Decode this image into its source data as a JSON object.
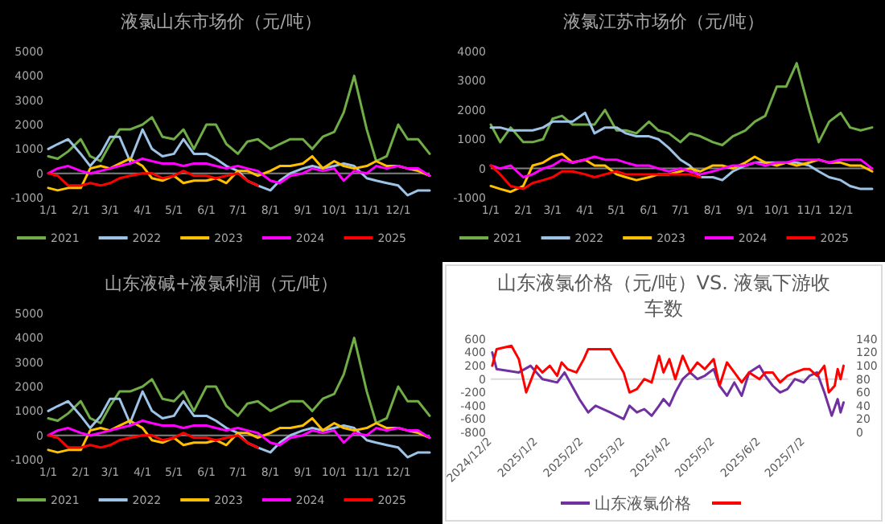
{
  "chart_data": [
    {
      "type": "line",
      "title": "液氯山东市场价（元/吨）",
      "legend": "bottom",
      "x": [
        "--01-01",
        "--01-10",
        "--01-20",
        "--02-01",
        "--02-10",
        "--02-20",
        "--03-01",
        "--03-10",
        "--03-20",
        "--04-01",
        "--04-10",
        "--04-20",
        "--05-01",
        "--05-10",
        "--05-20",
        "--06-01",
        "--06-10",
        "--06-20",
        "--07-01",
        "--07-10",
        "--07-20",
        "--08-01",
        "--08-10",
        "--08-20",
        "--09-01",
        "--09-10",
        "--09-20",
        "--10-01",
        "--10-10",
        "--10-20",
        "--11-01",
        "--11-10",
        "--11-20",
        "--12-01",
        "--12-10",
        "--12-20",
        "--12-31"
      ],
      "xlim": [
        "--01-01",
        "--12-31"
      ],
      "xticks": [
        {
          "value": "--01-01",
          "label": "1/1"
        },
        {
          "value": "--02-01",
          "label": "2/1"
        },
        {
          "value": "--03-01",
          "label": "3/1"
        },
        {
          "value": "--04-01",
          "label": "4/1"
        },
        {
          "value": "--05-01",
          "label": "5/1"
        },
        {
          "value": "--06-01",
          "label": "6/1"
        },
        {
          "value": "--07-01",
          "label": "7/1"
        },
        {
          "value": "--08-01",
          "label": "8/1"
        },
        {
          "value": "--09-01",
          "label": "9/1"
        },
        {
          "value": "--10-01",
          "label": "10/1"
        },
        {
          "value": "--11-01",
          "label": "11/1"
        },
        {
          "value": "--12-01",
          "label": "12/1"
        }
      ],
      "ylim": [
        -1000,
        5000
      ],
      "yticks": [
        -1000,
        0,
        1000,
        2000,
        3000,
        4000,
        5000
      ],
      "series": [
        {
          "name": "2021",
          "color": "#70ad47",
          "values": [
            700,
            600,
            900,
            1400,
            700,
            500,
            1200,
            1800,
            1800,
            2000,
            2300,
            1500,
            1400,
            1800,
            1000,
            2000,
            2000,
            1200,
            800,
            1300,
            1400,
            1000,
            1200,
            1400,
            1400,
            1000,
            1500,
            1700,
            2500,
            4000,
            1800,
            500,
            700,
            2000,
            1400,
            1400,
            800
          ]
        },
        {
          "name": "2022",
          "color": "#9dc3e6",
          "values": [
            1000,
            1200,
            1400,
            800,
            300,
            800,
            1500,
            1500,
            500,
            1800,
            1000,
            700,
            800,
            1400,
            800,
            800,
            600,
            300,
            100,
            -300,
            -500,
            -700,
            -300,
            0,
            200,
            300,
            200,
            300,
            400,
            300,
            -200,
            -300,
            -400,
            -500,
            -900,
            -700,
            -700
          ]
        },
        {
          "name": "2023",
          "color": "#ffc000",
          "values": [
            -600,
            -700,
            -600,
            -600,
            200,
            300,
            200,
            400,
            600,
            300,
            -200,
            -300,
            -100,
            -400,
            -300,
            -300,
            -200,
            -400,
            100,
            100,
            -100,
            100,
            300,
            300,
            400,
            700,
            200,
            500,
            300,
            200,
            300,
            500,
            300,
            300,
            200,
            100,
            -100
          ]
        },
        {
          "name": "2024",
          "color": "#ff00ff",
          "values": [
            0,
            200,
            300,
            100,
            0,
            100,
            200,
            300,
            400,
            600,
            500,
            400,
            400,
            300,
            400,
            400,
            300,
            200,
            300,
            200,
            100,
            -300,
            -400,
            -100,
            0,
            200,
            100,
            200,
            -300,
            100,
            0,
            300,
            200,
            300,
            200,
            200,
            -100
          ]
        },
        {
          "name": "2025",
          "color": "#ff0000",
          "values": [
            0,
            -100,
            -500,
            -500,
            -400,
            -500,
            -400,
            -200,
            -100,
            0,
            0,
            -200,
            -100,
            100,
            -100,
            -100,
            -200,
            -100,
            0,
            -300,
            -500,
            null,
            null,
            null,
            null,
            null,
            null,
            null,
            null,
            null,
            null,
            null,
            null,
            null,
            null,
            null,
            null
          ]
        }
      ]
    },
    {
      "type": "line",
      "title": "液氯江苏市场价（元/吨）",
      "legend": "bottom",
      "x": [
        "--01-01",
        "--01-10",
        "--01-20",
        "--02-01",
        "--02-10",
        "--02-20",
        "--03-01",
        "--03-10",
        "--03-20",
        "--04-01",
        "--04-10",
        "--04-20",
        "--05-01",
        "--05-10",
        "--05-20",
        "--06-01",
        "--06-10",
        "--06-20",
        "--07-01",
        "--07-10",
        "--07-20",
        "--08-01",
        "--08-10",
        "--08-20",
        "--09-01",
        "--09-10",
        "--09-20",
        "--10-01",
        "--10-10",
        "--10-20",
        "--11-01",
        "--11-10",
        "--11-20",
        "--12-01",
        "--12-10",
        "--12-20",
        "--12-31"
      ],
      "xlim": [
        "--01-01",
        "--12-31"
      ],
      "xticks": [
        {
          "value": "--01-01",
          "label": "1/1"
        },
        {
          "value": "--02-01",
          "label": "2/1"
        },
        {
          "value": "--03-01",
          "label": "3/1"
        },
        {
          "value": "--04-01",
          "label": "4/1"
        },
        {
          "value": "--05-01",
          "label": "5/1"
        },
        {
          "value": "--06-01",
          "label": "6/1"
        },
        {
          "value": "--07-01",
          "label": "7/1"
        },
        {
          "value": "--08-01",
          "label": "8/1"
        },
        {
          "value": "--09-01",
          "label": "9/1"
        },
        {
          "value": "--10-01",
          "label": "10/1"
        },
        {
          "value": "--11-01",
          "label": "11/1"
        },
        {
          "value": "--12-01",
          "label": "12/1"
        }
      ],
      "ylim": [
        -1000,
        4000
      ],
      "yticks": [
        -1000,
        0,
        1000,
        2000,
        3000,
        4000
      ],
      "series": [
        {
          "name": "2021",
          "color": "#70ad47",
          "values": [
            1500,
            900,
            1400,
            900,
            900,
            1000,
            1700,
            1800,
            1500,
            1500,
            1500,
            2000,
            1300,
            1300,
            1200,
            1600,
            1300,
            1200,
            900,
            1200,
            1100,
            900,
            800,
            1100,
            1300,
            1600,
            1800,
            2800,
            2800,
            3600,
            2000,
            900,
            1600,
            1900,
            1400,
            1300,
            1400
          ]
        },
        {
          "name": "2022",
          "color": "#9dc3e6",
          "values": [
            1400,
            1400,
            1300,
            1300,
            1300,
            1400,
            1600,
            1600,
            1600,
            1900,
            1200,
            1400,
            1400,
            1200,
            1100,
            1100,
            1000,
            700,
            300,
            100,
            -300,
            -300,
            -400,
            -100,
            100,
            200,
            200,
            200,
            200,
            200,
            100,
            -100,
            -300,
            -400,
            -600,
            -700,
            -700
          ]
        },
        {
          "name": "2023",
          "color": "#ffc000",
          "values": [
            -600,
            -700,
            -800,
            -600,
            100,
            200,
            400,
            500,
            200,
            300,
            100,
            100,
            -200,
            -300,
            -400,
            -300,
            -200,
            -200,
            -100,
            0,
            -100,
            100,
            100,
            0,
            200,
            400,
            200,
            100,
            200,
            100,
            200,
            300,
            200,
            200,
            100,
            100,
            -100
          ]
        },
        {
          "name": "2024",
          "color": "#ff00ff",
          "values": [
            100,
            0,
            100,
            -300,
            -200,
            0,
            100,
            300,
            200,
            300,
            400,
            300,
            300,
            200,
            100,
            100,
            0,
            -100,
            0,
            -100,
            -200,
            -100,
            0,
            100,
            100,
            200,
            100,
            200,
            200,
            300,
            300,
            300,
            200,
            300,
            300,
            300,
            0
          ]
        },
        {
          "name": "2025",
          "color": "#ff0000",
          "values": [
            100,
            -200,
            -600,
            -700,
            -500,
            -400,
            -300,
            -100,
            -100,
            -200,
            -300,
            -200,
            -100,
            -200,
            -200,
            -200,
            -200,
            -200,
            -200,
            -200,
            -300,
            null,
            null,
            null,
            null,
            null,
            null,
            null,
            null,
            null,
            null,
            null,
            null,
            null,
            null,
            null,
            null
          ]
        }
      ]
    },
    {
      "type": "line",
      "title": "山东液碱+液氯利润（元/吨）",
      "legend": "bottom",
      "x": [
        "--01-01",
        "--01-10",
        "--01-20",
        "--02-01",
        "--02-10",
        "--02-20",
        "--03-01",
        "--03-10",
        "--03-20",
        "--04-01",
        "--04-10",
        "--04-20",
        "--05-01",
        "--05-10",
        "--05-20",
        "--06-01",
        "--06-10",
        "--06-20",
        "--07-01",
        "--07-10",
        "--07-20",
        "--08-01",
        "--08-10",
        "--08-20",
        "--09-01",
        "--09-10",
        "--09-20",
        "--10-01",
        "--10-10",
        "--10-20",
        "--11-01",
        "--11-10",
        "--11-20",
        "--12-01",
        "--12-10",
        "--12-20",
        "--12-31"
      ],
      "xlim": [
        "--01-01",
        "--12-31"
      ],
      "xticks": [
        {
          "value": "--01-01",
          "label": "1/1"
        },
        {
          "value": "--02-01",
          "label": "2/1"
        },
        {
          "value": "--03-01",
          "label": "3/1"
        },
        {
          "value": "--04-01",
          "label": "4/1"
        },
        {
          "value": "--05-01",
          "label": "5/1"
        },
        {
          "value": "--06-01",
          "label": "6/1"
        },
        {
          "value": "--07-01",
          "label": "7/1"
        },
        {
          "value": "--08-01",
          "label": "8/1"
        },
        {
          "value": "--09-01",
          "label": "9/1"
        },
        {
          "value": "--10-01",
          "label": "10/1"
        },
        {
          "value": "--11-01",
          "label": "11/1"
        },
        {
          "value": "--12-01",
          "label": "12/1"
        }
      ],
      "ylim": [
        -1000,
        5000
      ],
      "yticks": [
        -1000,
        0,
        1000,
        2000,
        3000,
        4000,
        5000
      ],
      "series": [
        {
          "name": "2021",
          "color": "#70ad47",
          "values": [
            700,
            600,
            900,
            1400,
            700,
            500,
            1200,
            1800,
            1800,
            2000,
            2300,
            1500,
            1400,
            1800,
            1000,
            2000,
            2000,
            1200,
            800,
            1300,
            1400,
            1000,
            1200,
            1400,
            1400,
            1000,
            1500,
            1700,
            2500,
            4000,
            1800,
            500,
            700,
            2000,
            1400,
            1400,
            800
          ]
        },
        {
          "name": "2022",
          "color": "#9dc3e6",
          "values": [
            1000,
            1200,
            1400,
            800,
            300,
            800,
            1500,
            1500,
            500,
            1800,
            1000,
            700,
            800,
            1400,
            800,
            800,
            600,
            300,
            100,
            -300,
            -500,
            -700,
            -300,
            0,
            200,
            300,
            200,
            300,
            400,
            300,
            -200,
            -300,
            -400,
            -500,
            -900,
            -700,
            -700
          ]
        },
        {
          "name": "2023",
          "color": "#ffc000",
          "values": [
            -600,
            -700,
            -600,
            -600,
            200,
            300,
            200,
            400,
            600,
            300,
            -200,
            -300,
            -100,
            -400,
            -300,
            -300,
            -200,
            -400,
            100,
            100,
            -100,
            100,
            300,
            300,
            400,
            700,
            200,
            500,
            300,
            200,
            300,
            500,
            300,
            300,
            200,
            100,
            -100
          ]
        },
        {
          "name": "2024",
          "color": "#ff00ff",
          "values": [
            0,
            200,
            300,
            100,
            0,
            100,
            200,
            300,
            400,
            600,
            500,
            400,
            400,
            300,
            400,
            400,
            300,
            200,
            300,
            200,
            100,
            -300,
            -400,
            -100,
            0,
            200,
            100,
            200,
            -300,
            100,
            0,
            300,
            200,
            300,
            200,
            200,
            -100
          ]
        },
        {
          "name": "2025",
          "color": "#ff0000",
          "values": [
            0,
            -100,
            -500,
            -500,
            -400,
            -500,
            -400,
            -200,
            -100,
            0,
            0,
            -200,
            -100,
            100,
            -100,
            -100,
            -200,
            -100,
            0,
            -300,
            -500,
            null,
            null,
            null,
            null,
            null,
            null,
            null,
            null,
            null,
            null,
            null,
            null,
            null,
            null,
            null,
            null
          ]
        }
      ]
    },
    {
      "type": "line",
      "title": "山东液氯价格（元/吨）VS. 液氯下游收车数",
      "legend": "bottom",
      "xlim": [
        "2024-12-01",
        "2025-07-31"
      ],
      "xticks": [
        {
          "value": "2024-12-02",
          "label": "2024/12/2"
        },
        {
          "value": "2025-01-02",
          "label": "2025/1/2"
        },
        {
          "value": "2025-02-02",
          "label": "2025/2/2"
        },
        {
          "value": "2025-03-02",
          "label": "2025/3/2"
        },
        {
          "value": "2025-04-02",
          "label": "2025/4/2"
        },
        {
          "value": "2025-05-02",
          "label": "2025/5/2"
        },
        {
          "value": "2025-06-02",
          "label": "2025/6/2"
        },
        {
          "value": "2025-07-02",
          "label": "2025/7/2"
        }
      ],
      "ylim": [
        -800,
        600
      ],
      "yticks": [
        -800,
        -600,
        -400,
        -200,
        0,
        200,
        400,
        600
      ],
      "y2lim": [
        0,
        140
      ],
      "y2ticks": [
        0,
        20,
        40,
        60,
        80,
        100,
        120,
        140
      ],
      "series": [
        {
          "name": "山东液氯价格",
          "color": "#7030a0",
          "x": [
            "2024-12-02",
            "2024-12-05",
            "2024-12-20",
            "2024-12-28",
            "2025-01-05",
            "2025-01-15",
            "2025-01-20",
            "2025-01-25",
            "2025-01-30",
            "2025-02-05",
            "2025-02-10",
            "2025-02-20",
            "2025-03-01",
            "2025-03-05",
            "2025-03-10",
            "2025-03-15",
            "2025-03-20",
            "2025-03-25",
            "2025-03-28",
            "2025-04-01",
            "2025-04-05",
            "2025-04-10",
            "2025-04-15",
            "2025-04-20",
            "2025-04-25",
            "2025-05-01",
            "2025-05-05",
            "2025-05-10",
            "2025-05-15",
            "2025-05-20",
            "2025-05-25",
            "2025-06-01",
            "2025-06-05",
            "2025-06-10",
            "2025-06-15",
            "2025-06-20",
            "2025-06-25",
            "2025-07-01",
            "2025-07-05",
            "2025-07-10",
            "2025-07-15",
            "2025-07-20",
            "2025-07-24",
            "2025-07-26",
            "2025-07-28"
          ],
          "values": [
            400,
            150,
            100,
            200,
            0,
            -50,
            100,
            -100,
            -300,
            -500,
            -400,
            -500,
            -600,
            -400,
            -500,
            -450,
            -550,
            -400,
            -300,
            -400,
            -200,
            0,
            100,
            0,
            50,
            150,
            -100,
            -250,
            -50,
            -250,
            100,
            200,
            50,
            -100,
            -200,
            -150,
            0,
            -50,
            50,
            100,
            -200,
            -550,
            -300,
            -500,
            -350
          ]
        },
        {
          "color": "#ff0000",
          "axis": "y2",
          "x": [
            "2024-12-02",
            "2024-12-05",
            "2024-12-15",
            "2024-12-20",
            "2024-12-25",
            "2025-01-01",
            "2025-01-05",
            "2025-01-10",
            "2025-01-15",
            "2025-01-18",
            "2025-01-22",
            "2025-01-28",
            "2025-02-02",
            "2025-02-05",
            "2025-02-10",
            "2025-02-20",
            "2025-02-25",
            "2025-03-01",
            "2025-03-05",
            "2025-03-10",
            "2025-03-15",
            "2025-03-20",
            "2025-03-25",
            "2025-03-28",
            "2025-04-01",
            "2025-04-05",
            "2025-04-10",
            "2025-04-15",
            "2025-04-20",
            "2025-04-25",
            "2025-05-01",
            "2025-05-05",
            "2025-05-10",
            "2025-05-15",
            "2025-05-20",
            "2025-05-25",
            "2025-06-01",
            "2025-06-05",
            "2025-06-10",
            "2025-06-15",
            "2025-06-20",
            "2025-06-25",
            "2025-07-01",
            "2025-07-05",
            "2025-07-10",
            "2025-07-15",
            "2025-07-18",
            "2025-07-22",
            "2025-07-24",
            "2025-07-26",
            "2025-07-28"
          ],
          "values": [
            100,
            125,
            130,
            110,
            60,
            100,
            90,
            100,
            85,
            105,
            95,
            90,
            110,
            125,
            125,
            125,
            105,
            90,
            60,
            65,
            80,
            75,
            115,
            90,
            110,
            80,
            115,
            90,
            105,
            95,
            110,
            70,
            105,
            90,
            75,
            90,
            80,
            90,
            90,
            75,
            85,
            90,
            95,
            95,
            85,
            100,
            60,
            70,
            95,
            80,
            100
          ]
        }
      ]
    }
  ]
}
